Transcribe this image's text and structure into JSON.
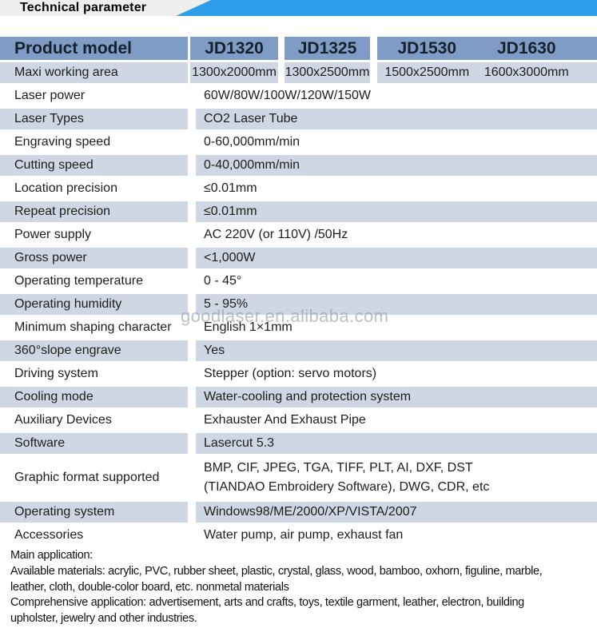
{
  "banner": {
    "title": "Technical parameter"
  },
  "table": {
    "header": {
      "label": "Product model",
      "models": [
        "JD1320",
        "JD1325",
        "JD1530",
        "JD1630"
      ]
    },
    "working_area": {
      "label": "Maxi working area",
      "values": [
        "1300x2000mm",
        "1300x2500mm",
        "1500x2500mm",
        "1600x3000mm"
      ]
    },
    "rows": [
      {
        "label": "Laser power",
        "value": "60W/80W/100W/120W/150W"
      },
      {
        "label": "Laser Types",
        "value": "CO2 Laser Tube"
      },
      {
        "label": "Engraving speed",
        "value": "0-60,000mm/min"
      },
      {
        "label": "Cutting speed",
        "value": "0-40,000mm/min"
      },
      {
        "label": "Location precision",
        "value": "≤0.01mm"
      },
      {
        "label": "Repeat precision",
        "value": "≤0.01mm"
      },
      {
        "label": "Power supply",
        "value": "AC 220V (or 110V) /50Hz"
      },
      {
        "label": "Gross power",
        "value": "<1,000W"
      },
      {
        "label": "Operating temperature",
        "value": "0 - 45°"
      },
      {
        "label": "Operating humidity",
        "value": "5 - 95%"
      },
      {
        "label": "Minimum shaping character",
        "value": "English 1×1mm"
      },
      {
        "label": "360°slope engrave",
        "value": "Yes"
      },
      {
        "label": "Driving system",
        "value": "Stepper (option: servo motors)"
      },
      {
        "label": "Cooling mode",
        "value": "Water-cooling and protection system"
      },
      {
        "label": "Auxiliary Devices",
        "value": "Exhauster And Exhaust Pipe"
      },
      {
        "label": "Software",
        "value": "Lasercut 5.3"
      },
      {
        "label": "Graphic format supported",
        "value": "BMP, CIF, JPEG, TGA, TIFF, PLT, AI, DXF, DST",
        "value2": "(TIANDAO Embroidery Software), DWG, CDR, etc"
      },
      {
        "label": "Operating system",
        "value": "Windows98/ME/2000/XP/VISTA/2007"
      },
      {
        "label": "Accessories",
        "value": "Water pump, air pump, exhaust fan"
      }
    ]
  },
  "watermark": "goodlaser.en.alibaba.com",
  "footer": {
    "lines": [
      "Main application:",
      "Available materials: acrylic, PVC, rubber sheet, plastic, crystal, glass, wood, bamboo, oxhorn, figuline, marble, leather, cloth, double-color board, etc. nonmetal materials",
      "Comprehensive application: advertisement, arts and crafts, toys, textile garment, leather, electron, building upholster, jewelry and other industries."
    ]
  },
  "colors": {
    "banner_blue": "#2e9eeb",
    "header_bg": "#7e9cc5",
    "header_text": "#16212d",
    "row_shade": "#cfd6e4",
    "watermark": "#9099a4",
    "banner_box": "#efefef"
  }
}
